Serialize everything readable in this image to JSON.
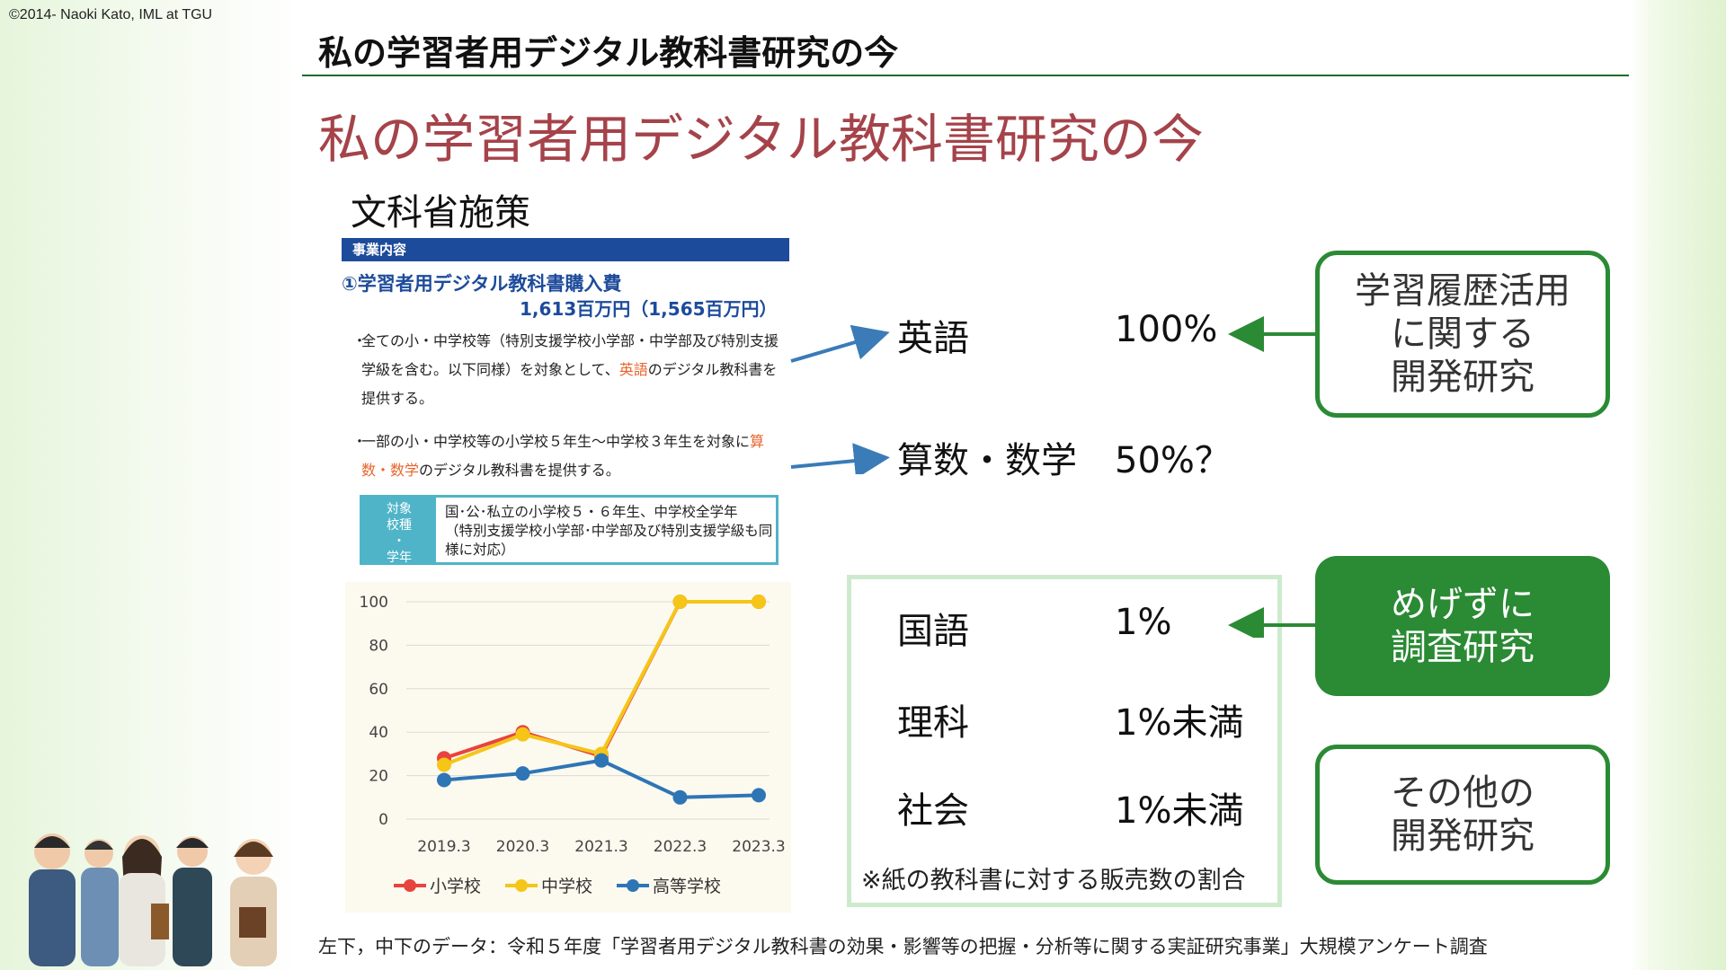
{
  "copyright": "©2014- Naoki Kato, IML at TGU",
  "header": {
    "title": "私の学習者用デジタル教科書研究の今"
  },
  "main_title": "私の学習者用デジタル教科書研究の今",
  "sub_title": "文科省施策",
  "doc": {
    "bar_label": "事業内容",
    "budget_title": "①学習者用デジタル教科書購入費",
    "budget_amount": "1,613百万円（1,565百万円）",
    "bullet": "・",
    "para1_a": "全ての小・中学校等（特別支援学校小学部・中学部及び特別支援学級を含む。以下同様）を対象として、",
    "para1_hl": "英語",
    "para1_b": "のデジタル教科書を提供する。",
    "para2_a": "一部の小・中学校等の小学校５年生～中学校３年生を対象に",
    "para2_hl": "算数・数学",
    "para2_b": "のデジタル教科書を提供する。",
    "target_label": "対象\n校種\n・\n学年",
    "target_text": "国･公･私立の小学校５・６年生、中学校全学年\n（特別支援学校小学部･中学部及び特別支援学級も同様に対応）"
  },
  "chart_data": {
    "type": "line",
    "categories": [
      "2019.3",
      "2020.3",
      "2021.3",
      "2022.3",
      "2023.3"
    ],
    "series": [
      {
        "name": "小学校",
        "values": [
          28,
          40,
          29,
          100,
          100
        ],
        "color": "#e8433f"
      },
      {
        "name": "中学校",
        "values": [
          25,
          39,
          30,
          100,
          100
        ],
        "color": "#f5c518"
      },
      {
        "name": "高等学校",
        "values": [
          18,
          21,
          27,
          10,
          11
        ],
        "color": "#2e75b6"
      }
    ],
    "ylim": [
      0,
      100
    ],
    "yticks": [
      "0",
      "20",
      "40",
      "60",
      "80",
      "100"
    ],
    "grid": true,
    "legend": "bottom"
  },
  "rates": [
    {
      "subject": "英語",
      "value": "100%"
    },
    {
      "subject": "算数・数学",
      "value": "50%？"
    },
    {
      "subject": "国語",
      "value": "1%"
    },
    {
      "subject": "理科",
      "value": "1%未満"
    },
    {
      "subject": "社会",
      "value": "1%未満"
    }
  ],
  "boxes": {
    "box1": "学習履歴活用\nに関する\n開発研究",
    "box2": "めげずに\n調査研究",
    "box3": "その他の\n開発研究"
  },
  "note": "※紙の教科書に対する販売数の割合",
  "footer": "左下，中下のデータ：令和５年度「学習者用デジタル教科書の効果・影響等の把握・分析等に関する実証研究事業」大規模アンケート調査",
  "colors": {
    "accent_green": "#2b8a34",
    "title_red": "#a5434a",
    "doc_blue": "#1d4b9b",
    "arrow_blue": "#3a7bb8"
  }
}
